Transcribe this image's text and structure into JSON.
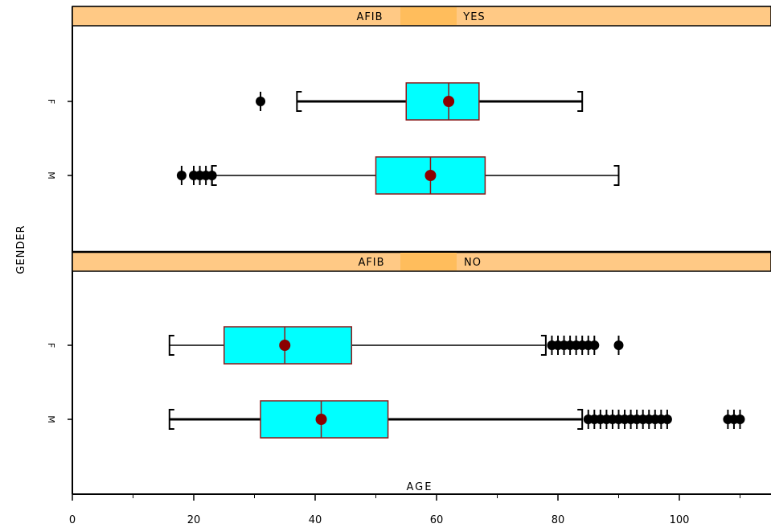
{
  "chart_data": {
    "type": "boxplot",
    "xlabel": "AGE",
    "ylabel": "GENDER",
    "xlim": [
      0,
      118
    ],
    "xticks": [
      0,
      20,
      40,
      60,
      80,
      100
    ],
    "colors": {
      "strip": "#ffc985",
      "strip_highlight": "#ffbd5c",
      "box_fill": "#00ffff",
      "box_edge": "#8b1a1a",
      "mean_marker": "#8b0000",
      "whisker": "#000000"
    },
    "panels": [
      {
        "strip_label": "AFIB YES",
        "strip_left": "AFIB",
        "strip_right": "YES",
        "groups": [
          {
            "category": "F",
            "q1": 55,
            "median": 62,
            "q3": 67,
            "mean": 62,
            "whisker_low": 37,
            "whisker_high": 84,
            "outliers": [
              31
            ]
          },
          {
            "category": "M",
            "q1": 50,
            "median": 59,
            "q3": 68,
            "mean": 59,
            "whisker_low": 23,
            "whisker_high": 90,
            "outliers": [
              18,
              20,
              21,
              22,
              23
            ]
          }
        ]
      },
      {
        "strip_label": "AFIB NO",
        "strip_left": "AFIB",
        "strip_right": "NO",
        "groups": [
          {
            "category": "F",
            "q1": 25,
            "median": 35,
            "q3": 46,
            "mean": 35,
            "whisker_low": 16,
            "whisker_high": 78,
            "outliers": [
              79,
              80,
              81,
              82,
              83,
              84,
              85,
              86,
              90
            ]
          },
          {
            "category": "M",
            "q1": 31,
            "median": 41,
            "q3": 52,
            "mean": 41,
            "whisker_low": 16,
            "whisker_high": 84,
            "outliers": [
              85,
              86,
              87,
              88,
              89,
              90,
              91,
              92,
              93,
              94,
              95,
              96,
              97,
              98,
              108,
              109,
              110
            ]
          }
        ]
      }
    ]
  }
}
